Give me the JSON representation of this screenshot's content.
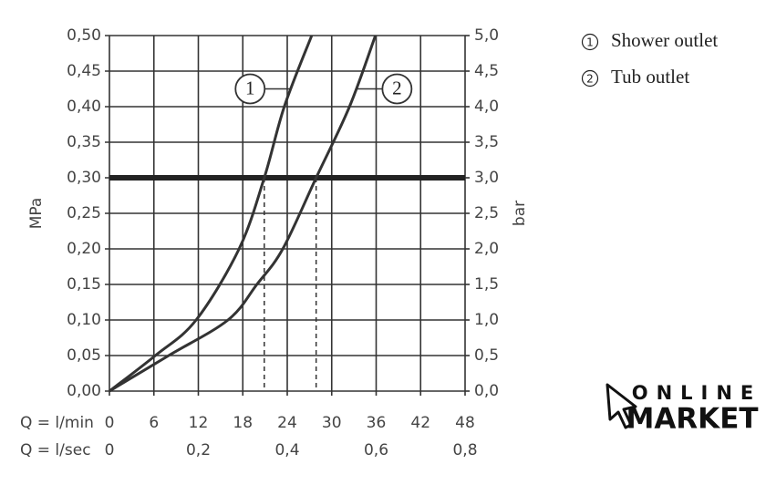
{
  "chart_data": {
    "type": "line",
    "y_label": "MPa",
    "y2_label": "bar",
    "x_label": "Q = l/min",
    "x2_label": "Q = l/sec",
    "xlim": [
      0,
      48
    ],
    "xticks": [
      0,
      6,
      12,
      18,
      24,
      30,
      36,
      42,
      48
    ],
    "x2lim": [
      0,
      0.8
    ],
    "x2ticks": [
      0,
      {
        "value": 0.2,
        "label": "0,2"
      },
      {
        "value": 0.4,
        "label": "0,4"
      },
      {
        "value": 0.6,
        "label": "0,6"
      },
      {
        "value": 0.8,
        "label": "0,8"
      }
    ],
    "ylim": [
      0,
      0.5
    ],
    "yticks": [
      {
        "value": 0,
        "label": "0,00"
      },
      {
        "value": 0.05,
        "label": "0,05"
      },
      {
        "value": 0.1,
        "label": "0,10"
      },
      {
        "value": 0.15,
        "label": "0,15"
      },
      {
        "value": 0.2,
        "label": "0,20"
      },
      {
        "value": 0.25,
        "label": "0,25"
      },
      {
        "value": 0.3,
        "label": "0,30"
      },
      {
        "value": 0.35,
        "label": "0,35"
      },
      {
        "value": 0.4,
        "label": "0,40"
      },
      {
        "value": 0.45,
        "label": "0,45"
      },
      {
        "value": 0.5,
        "label": "0,50"
      }
    ],
    "y2lim": [
      0,
      5
    ],
    "y2ticks": [
      {
        "value": 0,
        "label": "0,0"
      },
      {
        "value": 0.5,
        "label": "0,5"
      },
      {
        "value": 1,
        "label": "1,0"
      },
      {
        "value": 1.5,
        "label": "1,5"
      },
      {
        "value": 2,
        "label": "2,0"
      },
      {
        "value": 2.5,
        "label": "2,5"
      },
      {
        "value": 3,
        "label": "3,0"
      },
      {
        "value": 3.5,
        "label": "3,5"
      },
      {
        "value": 4,
        "label": "4,0"
      },
      {
        "value": 4.5,
        "label": "4,5"
      },
      {
        "value": 5,
        "label": "5,0"
      }
    ],
    "grid": true,
    "reference_y": 0.3,
    "dashed_x": [
      20.9,
      27.9
    ],
    "series": [
      {
        "name": "Shower outlet",
        "label": "1",
        "color": "#333333",
        "x": [
          0,
          6.2,
          11.7,
          17.5,
          20.9,
          23.6,
          27.3
        ],
        "y": [
          0,
          0.05,
          0.1,
          0.2,
          0.3,
          0.4,
          0.5
        ]
      },
      {
        "name": "Tub outlet",
        "label": "2",
        "color": "#333333",
        "x": [
          0,
          8,
          16,
          19.9,
          23.4,
          27.9,
          32.4,
          35.9
        ],
        "y": [
          0,
          0.05,
          0.1,
          0.15,
          0.2,
          0.3,
          0.4,
          0.5
        ]
      }
    ]
  },
  "logo": {
    "top": "ONLINE",
    "bottom": "MARKET"
  }
}
